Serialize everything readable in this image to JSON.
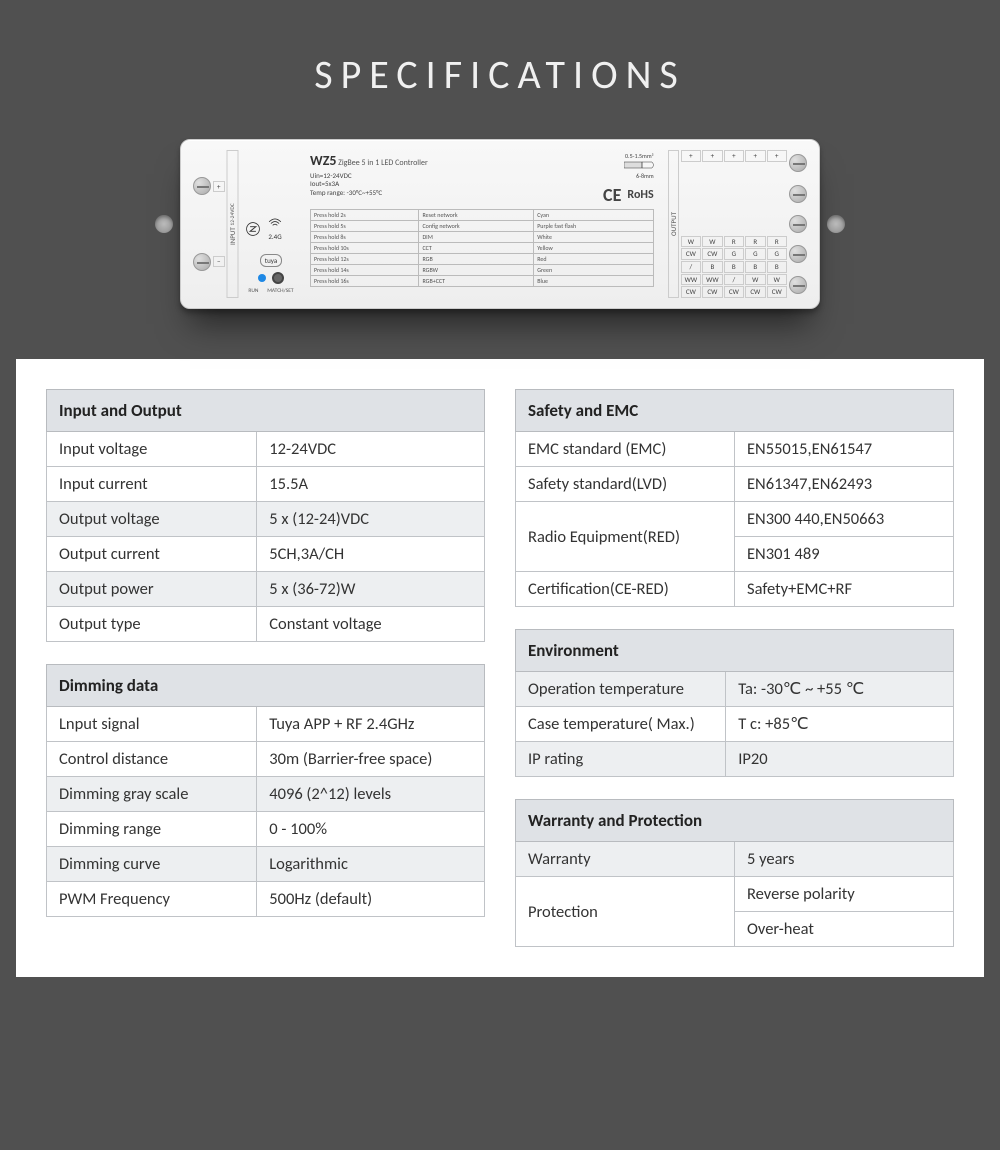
{
  "title": "SPECIFICATIONS",
  "device": {
    "model": "WZ5",
    "subtitle": "ZigBee 5 in 1 LED Controller",
    "uin": "Uin=12-24VDC",
    "iout": "Iout=5x3A",
    "temp": "Temp range: -30°C~+55°C",
    "ce": "C E",
    "rohs": "RoHS",
    "wire_spec": "0.5-1.5mm²",
    "wire_strip": "6-8mm",
    "ant24": "2.4G",
    "tuya": "tuya",
    "run": "RUN",
    "match": "MATCH/SET",
    "input_label": "INPUT",
    "input_sub": "12-24VDC",
    "output_label": "OUTPUT",
    "in_pins": [
      "+",
      "−"
    ],
    "out_top": [
      "+",
      "+",
      "+",
      "+",
      "+"
    ],
    "out_grid": [
      [
        "W",
        "W",
        "R",
        "R",
        "R"
      ],
      [
        "CW",
        "CW",
        "G",
        "G",
        "G"
      ],
      [
        "/",
        "B",
        "B",
        "B",
        "B"
      ],
      [
        "WW",
        "WW",
        "/",
        "W",
        "W"
      ],
      [
        "CW",
        "CW",
        "CW",
        "CW",
        "CW"
      ]
    ],
    "press_table": [
      [
        "Press hold 2s",
        "Reset network",
        "Cyan"
      ],
      [
        "Press hold 5s",
        "Config network",
        "Purple fast flash"
      ],
      [
        "Press hold 8s",
        "DIM",
        "White"
      ],
      [
        "Press hold 10s",
        "CCT",
        "Yellow"
      ],
      [
        "Press hold 12s",
        "RGB",
        "Red"
      ],
      [
        "Press hold 14s",
        "RGBW",
        "Green"
      ],
      [
        "Press hold 16s",
        "RGB+CCT",
        "Blue"
      ]
    ]
  },
  "sections": {
    "io": {
      "title": "Input and Output",
      "rows": [
        {
          "k": "Input voltage",
          "v": "12-24VDC",
          "shade": false
        },
        {
          "k": "Input current",
          "v": "15.5A",
          "shade": false
        },
        {
          "k": "Output voltage",
          "v": "5 x (12-24)VDC",
          "shade": true
        },
        {
          "k": "Output current",
          "v": "5CH,3A/CH",
          "shade": false
        },
        {
          "k": "Output power",
          "v": "5 x (36-72)W",
          "shade": true
        },
        {
          "k": "Output type",
          "v": "Constant voltage",
          "shade": false
        }
      ]
    },
    "dim": {
      "title": "Dimming data",
      "rows": [
        {
          "k": "Lnput signal",
          "v": "Tuya APP + RF 2.4GHz",
          "shade": false
        },
        {
          "k": "Control distance",
          "v": "30m (Barrier-free space)",
          "shade": false
        },
        {
          "k": "Dimming gray scale",
          "v": "4096 (2^12) levels",
          "shade": true
        },
        {
          "k": "Dimming range",
          "v": "0 - 100%",
          "shade": false
        },
        {
          "k": "Dimming curve",
          "v": "Logarithmic",
          "shade": true
        },
        {
          "k": "PWM Frequency",
          "v": "500Hz (default)",
          "shade": false
        }
      ]
    },
    "emc": {
      "title": "Safety and EMC",
      "rows": [
        {
          "k": "EMC standard (EMC)",
          "v": "EN55015,EN61547",
          "shade": false
        },
        {
          "k": "Safety standard(LVD)",
          "v": "EN61347,EN62493",
          "shade": false
        },
        {
          "k": "Radio Equipment(RED)",
          "v": "EN300 440,EN50663\nEN301 489",
          "shade": false
        },
        {
          "k": "Certification(CE-RED)",
          "v": "Safety+EMC+RF",
          "shade": false
        }
      ]
    },
    "env": {
      "title": "Environment",
      "rows": [
        {
          "k": "Operation temperature",
          "v": "Ta: -30℃ ~ +55 ℃",
          "shade": true
        },
        {
          "k": "Case temperature( Max.)",
          "v": "T c:  +85℃",
          "shade": false
        },
        {
          "k": "IP rating",
          "v": "IP20",
          "shade": true
        }
      ]
    },
    "war": {
      "title": "Warranty and Protection",
      "rows": [
        {
          "k": "Warranty",
          "v": "5 years",
          "shade": true
        },
        {
          "k": "Protection",
          "v": "Reverse polarity\nOver-heat",
          "shade": false
        }
      ]
    }
  },
  "colors": {
    "page_bg": "#505050",
    "panel_bg": "#ffffff",
    "header_shade": "#dfe2e6",
    "row_shade": "#edeff1",
    "border": "#c0c3c7"
  }
}
